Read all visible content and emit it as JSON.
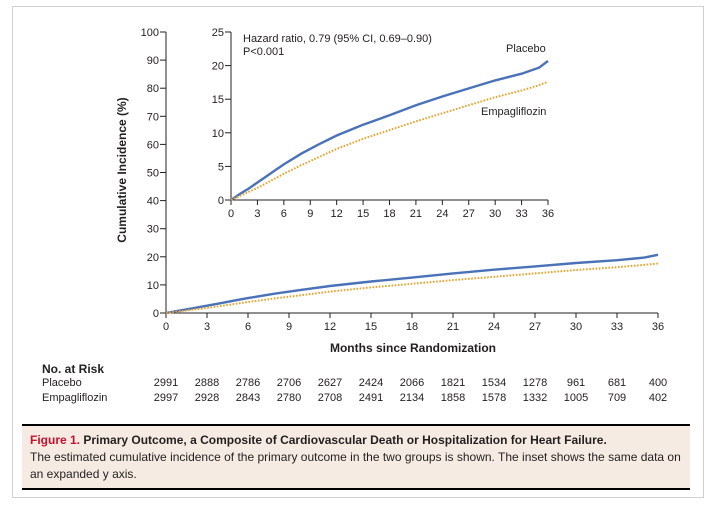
{
  "chart_data": [
    {
      "type": "line",
      "name": "main",
      "ylabel": "Cumulative Incidence (%)",
      "xlabel": "Months since Randomization",
      "xlim": [
        0,
        36
      ],
      "ylim": [
        0,
        100
      ],
      "x_ticks": [
        0,
        3,
        6,
        9,
        12,
        15,
        18,
        21,
        24,
        27,
        30,
        33,
        36
      ],
      "y_ticks": [
        0,
        10,
        20,
        30,
        40,
        50,
        60,
        70,
        80,
        90,
        100
      ],
      "x": [
        0,
        1,
        2,
        3,
        4,
        5,
        6,
        8,
        10,
        12,
        15,
        18,
        21,
        24,
        27,
        30,
        33,
        35,
        36
      ],
      "series": [
        {
          "name": "Placebo",
          "style": "solid",
          "color": "#4a72b8",
          "values": [
            0,
            0.9,
            1.7,
            2.6,
            3.5,
            4.4,
            5.3,
            6.9,
            8.3,
            9.6,
            11.2,
            12.6,
            14.1,
            15.4,
            16.6,
            17.8,
            18.8,
            19.7,
            20.7
          ]
        },
        {
          "name": "Empagliflozin",
          "style": "dotted",
          "color": "#e8a22a",
          "values": [
            0,
            0.6,
            1.2,
            1.8,
            2.5,
            3.2,
            3.9,
            5.2,
            6.4,
            7.6,
            9.1,
            10.4,
            11.7,
            12.9,
            14.1,
            15.3,
            16.3,
            17.1,
            17.6
          ]
        }
      ]
    },
    {
      "type": "line",
      "name": "inset",
      "annotation_line1": "Hazard ratio, 0.79 (95% CI, 0.69–0.90)",
      "annotation_line2": "P<0.001",
      "xlim": [
        0,
        36
      ],
      "ylim": [
        0,
        25
      ],
      "x_ticks": [
        0,
        3,
        6,
        9,
        12,
        15,
        18,
        21,
        24,
        27,
        30,
        33,
        36
      ],
      "y_ticks": [
        0,
        5,
        10,
        15,
        20,
        25
      ],
      "x": [
        0,
        1,
        2,
        3,
        4,
        5,
        6,
        8,
        10,
        12,
        15,
        18,
        21,
        24,
        27,
        30,
        33,
        35,
        36
      ],
      "series": [
        {
          "name": "Placebo",
          "style": "solid",
          "color": "#4a72b8",
          "values": [
            0,
            0.9,
            1.7,
            2.6,
            3.5,
            4.4,
            5.3,
            6.9,
            8.3,
            9.6,
            11.2,
            12.6,
            14.1,
            15.4,
            16.6,
            17.8,
            18.8,
            19.7,
            20.7
          ]
        },
        {
          "name": "Empagliflozin",
          "style": "dotted",
          "color": "#e8a22a",
          "values": [
            0,
            0.6,
            1.2,
            1.8,
            2.5,
            3.2,
            3.9,
            5.2,
            6.4,
            7.6,
            9.1,
            10.4,
            11.7,
            12.9,
            14.1,
            15.3,
            16.3,
            17.1,
            17.6
          ]
        }
      ]
    }
  ],
  "risk_table": {
    "title": "No. at Risk",
    "timepoints": [
      0,
      3,
      6,
      9,
      12,
      15,
      18,
      21,
      24,
      27,
      30,
      33,
      36
    ],
    "rows": [
      {
        "label": "Placebo",
        "values": [
          "2991",
          "2888",
          "2786",
          "2706",
          "2627",
          "2424",
          "2066",
          "1821",
          "1534",
          "1278",
          "961",
          "681",
          "400"
        ]
      },
      {
        "label": "Empagliflozin",
        "values": [
          "2997",
          "2928",
          "2843",
          "2780",
          "2708",
          "2491",
          "2134",
          "1858",
          "1578",
          "1332",
          "1005",
          "709",
          "402"
        ]
      }
    ]
  },
  "caption": {
    "label": "Figure 1.",
    "title": "Primary Outcome, a Composite of Cardiovascular Death or Hospitalization for Heart Failure.",
    "body": "The estimated cumulative incidence of the primary outcome in the two groups is shown. The inset shows the same data on an expanded y axis."
  },
  "colors": {
    "placebo": "#4a72b8",
    "empagliflozin": "#e8a22a",
    "caption_bg": "#f5ebe3",
    "caption_label": "#c8102e"
  }
}
